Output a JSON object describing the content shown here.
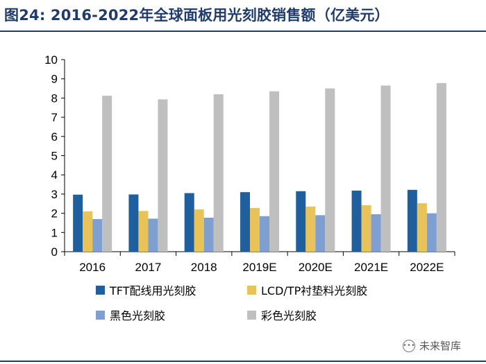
{
  "title": "图24: 2016-2022年全球面板用光刻胶销售额（亿美元）",
  "watermark": {
    "text": "未来智库",
    "icon": "chat-bubble-icon"
  },
  "chart_data": {
    "type": "bar",
    "title": "图24: 2016-2022年全球面板用光刻胶销售额（亿美元）",
    "xlabel": "",
    "ylabel": "",
    "ylim": [
      0,
      10
    ],
    "yticks": [
      "0",
      "1",
      "2",
      "3",
      "4",
      "5",
      "6",
      "7",
      "8",
      "9",
      "10"
    ],
    "categories": [
      "2016",
      "2017",
      "2018",
      "2019E",
      "2020E",
      "2021E",
      "2022E"
    ],
    "series": [
      {
        "name": "TFT配线用光刻胶",
        "color": "#1f5f9e",
        "values": [
          2.97,
          2.98,
          3.05,
          3.1,
          3.15,
          3.18,
          3.22
        ]
      },
      {
        "name": "LCD/TP衬垫料光刻胶",
        "color": "#e8c35a",
        "values": [
          2.1,
          2.12,
          2.2,
          2.28,
          2.35,
          2.42,
          2.52
        ]
      },
      {
        "name": "黑色光刻胶",
        "color": "#7f9fd0",
        "values": [
          1.7,
          1.72,
          1.77,
          1.85,
          1.9,
          1.95,
          2.0
        ]
      },
      {
        "name": "彩色光刻胶",
        "color": "#bfbfbf",
        "values": [
          8.12,
          7.93,
          8.2,
          8.35,
          8.5,
          8.65,
          8.78
        ]
      }
    ],
    "grid": false,
    "legend": "bottom"
  }
}
